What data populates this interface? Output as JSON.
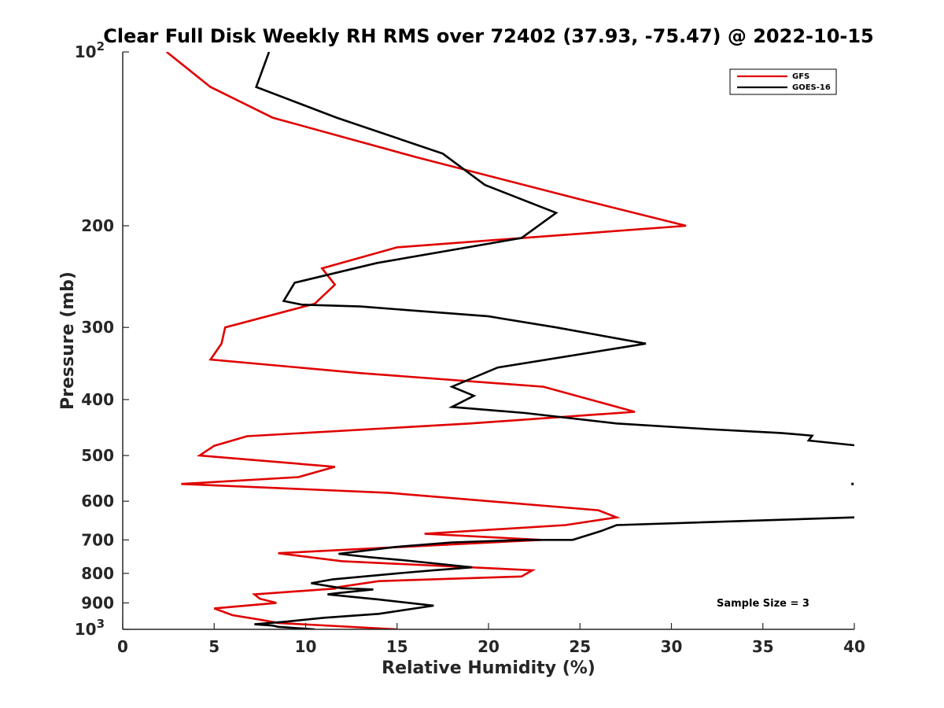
{
  "chart_data": {
    "type": "line",
    "title": "Clear Full Disk Weekly RH RMS over 72402 (37.93, -75.47) @ 2022-10-15",
    "xlabel": "Relative Humidity (%)",
    "ylabel": "Pressure (mb)",
    "xlim": [
      0,
      40
    ],
    "ylim": [
      100,
      1000
    ],
    "yscale": "log",
    "y_reversed": true,
    "grid": false,
    "legend_position": "top-right",
    "x_ticks": [
      {
        "value": 0,
        "label": "0"
      },
      {
        "value": 5,
        "label": "5"
      },
      {
        "value": 10,
        "label": "10"
      },
      {
        "value": 15,
        "label": "15"
      },
      {
        "value": 20,
        "label": "20"
      },
      {
        "value": 25,
        "label": "25"
      },
      {
        "value": 30,
        "label": "30"
      },
      {
        "value": 35,
        "label": "35"
      },
      {
        "value": 40,
        "label": "40"
      }
    ],
    "y_ticks": [
      {
        "value": 100,
        "base": "10",
        "exp": "2"
      },
      {
        "value": 200,
        "label": "200"
      },
      {
        "value": 300,
        "label": "300"
      },
      {
        "value": 400,
        "label": "400"
      },
      {
        "value": 500,
        "label": "500"
      },
      {
        "value": 600,
        "label": "600"
      },
      {
        "value": 700,
        "label": "700"
      },
      {
        "value": 800,
        "label": "800"
      },
      {
        "value": 900,
        "label": "900"
      },
      {
        "value": 1000,
        "base": "10",
        "exp": "3"
      }
    ],
    "series": [
      {
        "name": "GFS",
        "color": "#e00000",
        "points": [
          [
            2.4,
            100
          ],
          [
            4.8,
            115
          ],
          [
            8.2,
            130
          ],
          [
            16,
            152
          ],
          [
            25,
            180
          ],
          [
            30.8,
            200
          ],
          [
            15,
            218
          ],
          [
            10.9,
            237
          ],
          [
            11.6,
            253
          ],
          [
            10.5,
            273
          ],
          [
            5.6,
            300
          ],
          [
            5.4,
            320
          ],
          [
            4.8,
            341
          ],
          [
            13,
            360
          ],
          [
            23,
            380
          ],
          [
            28,
            420
          ],
          [
            19,
            440
          ],
          [
            6.8,
            463
          ],
          [
            5,
            481
          ],
          [
            4.2,
            500
          ],
          [
            11.6,
            523
          ],
          [
            9.6,
            545
          ],
          [
            3.2,
            560
          ],
          [
            14.5,
            580
          ],
          [
            26,
            622
          ],
          [
            27,
            640
          ],
          [
            24.2,
            660
          ],
          [
            16.5,
            683
          ],
          [
            22.9,
            700
          ],
          [
            8.5,
            738
          ],
          [
            12,
            762
          ],
          [
            22.4,
            790
          ],
          [
            21.8,
            810
          ],
          [
            14,
            825
          ],
          [
            11.8,
            845
          ],
          [
            11.6,
            850
          ],
          [
            7.2,
            870
          ],
          [
            7.5,
            885
          ],
          [
            8.4,
            900
          ],
          [
            5,
            920
          ],
          [
            6,
            945
          ],
          [
            7.5,
            962
          ],
          [
            8.5,
            975
          ],
          [
            15,
            1000
          ]
        ]
      },
      {
        "name": "GOES-16",
        "color": "#000000",
        "points": [
          [
            8,
            100
          ],
          [
            7.3,
            115
          ],
          [
            11.7,
            130
          ],
          [
            17.5,
            150
          ],
          [
            19.8,
            170
          ],
          [
            23.7,
            190
          ],
          [
            21.8,
            210
          ],
          [
            13.9,
            232
          ],
          [
            9.4,
            251
          ],
          [
            8.8,
            270
          ],
          [
            9.8,
            274
          ],
          [
            13,
            276
          ],
          [
            20,
            287
          ],
          [
            23.7,
            300
          ],
          [
            28.6,
            320
          ],
          [
            20.5,
            352
          ],
          [
            18,
            380
          ],
          [
            19.2,
            394
          ],
          [
            18,
            412
          ],
          [
            22,
            422
          ],
          [
            27,
            440
          ],
          [
            32,
            450
          ],
          [
            36,
            457
          ],
          [
            37.7,
            462
          ],
          [
            37.5,
            471
          ],
          [
            40,
            480
          ]
        ],
        "points_lower": [
          [
            40,
            640
          ],
          [
            27,
            660
          ],
          [
            26.2,
            675
          ],
          [
            24.6,
            700
          ],
          [
            22,
            700
          ],
          [
            18,
            707
          ],
          [
            14.9,
            720
          ],
          [
            11.8,
            740
          ],
          [
            13.5,
            750
          ],
          [
            15.5,
            760
          ],
          [
            19.1,
            781
          ],
          [
            17,
            790
          ],
          [
            15,
            800
          ],
          [
            11.5,
            819
          ],
          [
            10.3,
            832
          ],
          [
            12,
            849
          ],
          [
            13.7,
            853
          ],
          [
            11.8,
            865
          ],
          [
            11.2,
            870
          ],
          [
            14,
            888
          ],
          [
            17,
            910
          ],
          [
            14,
            940
          ],
          [
            11,
            955
          ],
          [
            8.9,
            970
          ],
          [
            7.2,
            980
          ],
          [
            8.2,
            985
          ],
          [
            8.5,
            990
          ],
          [
            10.5,
            1000
          ]
        ],
        "isolated_points": [
          [
            39.9,
            560
          ]
        ]
      }
    ],
    "legend": [
      {
        "label": "GFS",
        "color": "#e00000"
      },
      {
        "label": "GOES-16",
        "color": "#000000"
      }
    ],
    "annotations": [
      {
        "text": "Sample Size = 3"
      }
    ]
  }
}
